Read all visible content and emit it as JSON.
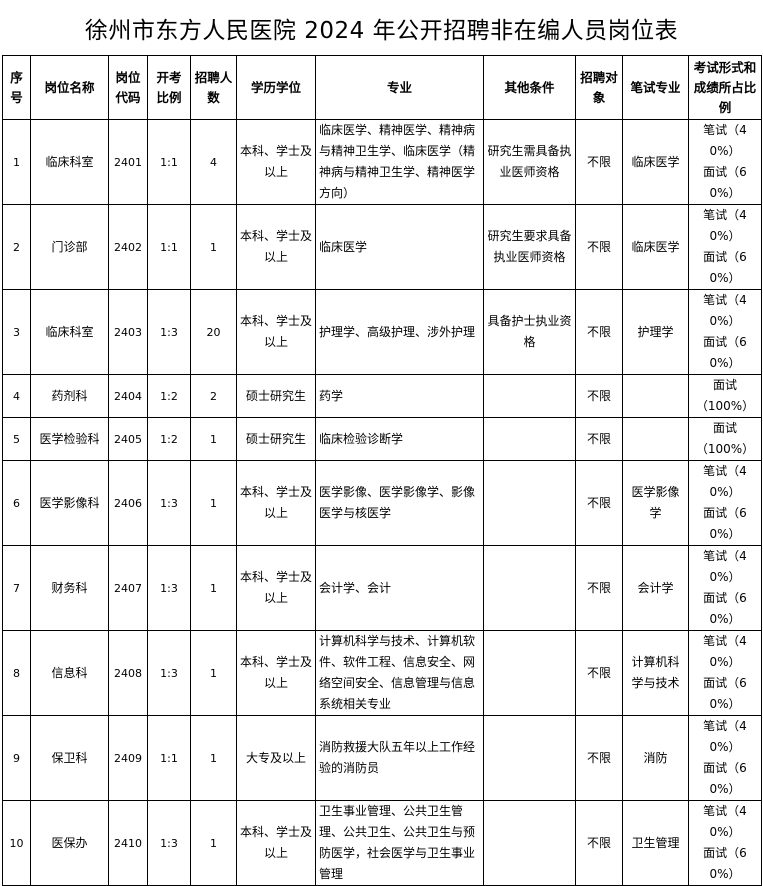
{
  "title": "徐州市东方人民医院 2024 年公开招聘非在编人员岗位表",
  "headers": [
    "序号",
    "岗位名称",
    "岗位代码",
    "开考比例",
    "招聘人数",
    "学历学位",
    "专业",
    "其他条件",
    "招聘对象",
    "笔试专业",
    "考试形式和成绩所占比例"
  ],
  "rows": [
    [
      "1",
      "临床科室",
      "2401",
      "1:1",
      "4",
      "本科、学士及以上",
      "临床医学、精神医学、精神病与精神卫生学、临床医学（精神病与精神卫生学、精神医学方向）",
      "研究生需具备执业医师资格",
      "不限",
      "临床医学",
      "笔试（40%）",
      "面试（60%）"
    ],
    [
      "2",
      "门诊部",
      "2402",
      "1:1",
      "1",
      "本科、学士及以上",
      "临床医学",
      "研究生要求具备执业医师资格",
      "不限",
      "临床医学",
      "笔试（40%）",
      "面试（60%）"
    ],
    [
      "3",
      "临床科室",
      "2403",
      "1:3",
      "20",
      "本科、学士及以上",
      "护理学、高级护理、涉外护理",
      "具备护士执业资格",
      "不限",
      "护理学",
      "笔试（40%）",
      "面试（60%）"
    ],
    [
      "4",
      "药剂科",
      "2404",
      "1:2",
      "2",
      "硕士研究生",
      "药学",
      "",
      "不限",
      "",
      "面试",
      "（100%）"
    ],
    [
      "5",
      "医学检验科",
      "2405",
      "1:2",
      "1",
      "硕士研究生",
      "临床检验诊断学",
      "",
      "不限",
      "",
      "面试",
      "（100%）"
    ],
    [
      "6",
      "医学影像科",
      "2406",
      "1:3",
      "1",
      "本科、学士及以上",
      "医学影像、医学影像学、影像医学与核医学",
      "",
      "不限",
      "医学影像学",
      "笔试（40%）",
      "面试（60%）"
    ],
    [
      "7",
      "财务科",
      "2407",
      "1:3",
      "1",
      "本科、学士及以上",
      "会计学、会计",
      "",
      "不限",
      "会计学",
      "笔试（40%）",
      "面试（60%）"
    ],
    [
      "8",
      "信息科",
      "2408",
      "1:3",
      "1",
      "本科、学士及以上",
      "计算机科学与技术、计算机软件、软件工程、信息安全、网络空间安全、信息管理与信息系统相关专业",
      "",
      "不限",
      "计算机科学与技术",
      "笔试（40%）",
      "面试（60%）"
    ],
    [
      "9",
      "保卫科",
      "2409",
      "1:1",
      "1",
      "大专及以上",
      "消防救援大队五年以上工作经验的消防员",
      "",
      "不限",
      "消防",
      "笔试（40%）",
      "面试（60%）"
    ],
    [
      "10",
      "医保办",
      "2410",
      "1:3",
      "1",
      "本科、学士及以上",
      "卫生事业管理、公共卫生管理、公共卫生、公共卫生与预防医学，社会医学与卫生事业管理",
      "",
      "不限",
      "卫生管理",
      "笔试（40%）",
      "面试（60%）"
    ]
  ]
}
